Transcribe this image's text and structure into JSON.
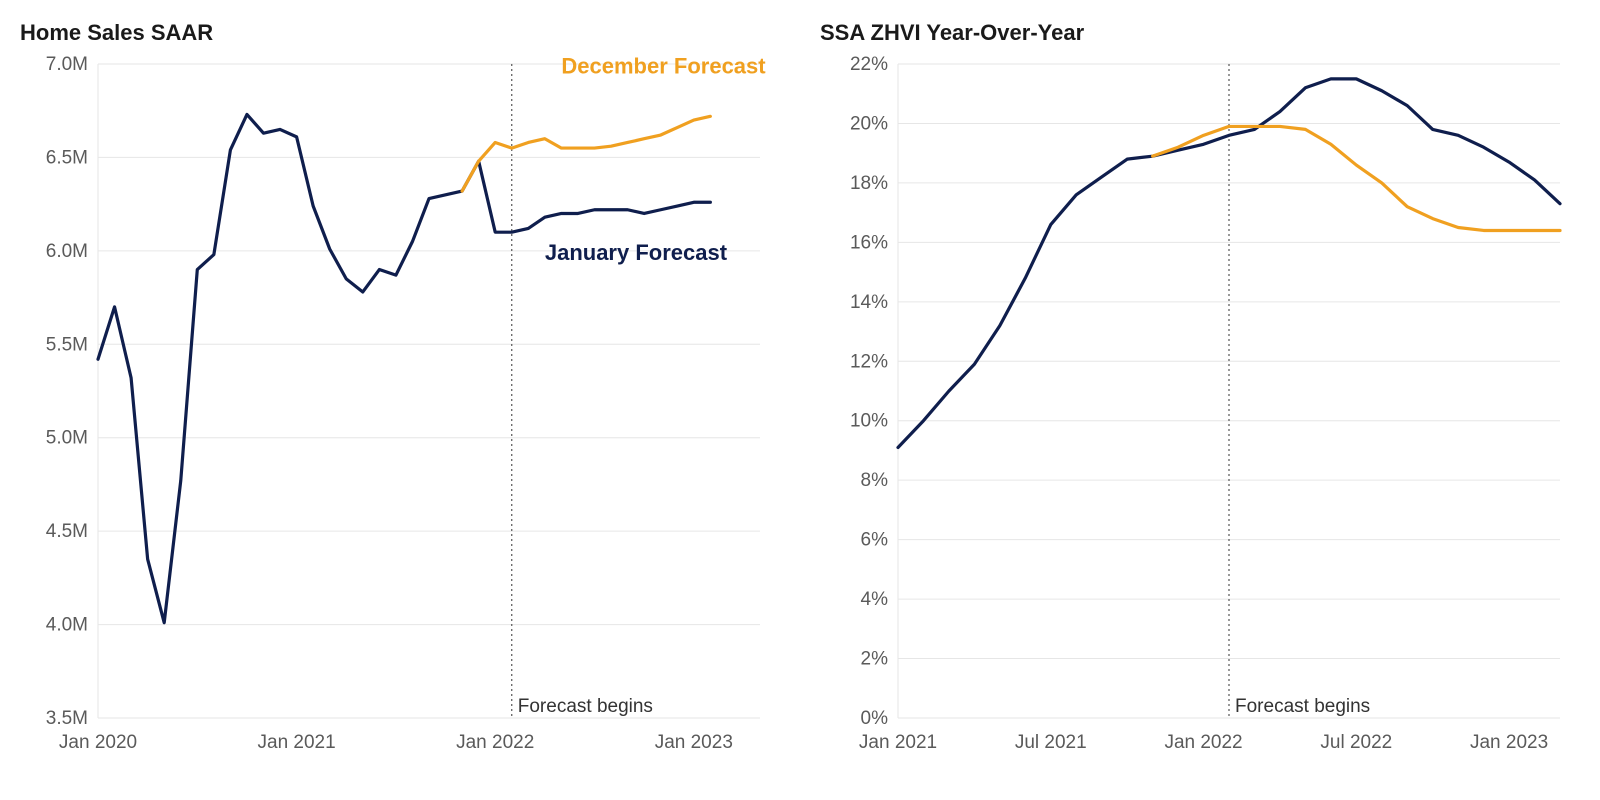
{
  "colors": {
    "january": "#0f1e4d",
    "december": "#f0a020",
    "grid": "#e6e6e6",
    "axis_text": "#5a5a5a",
    "title": "#1a1a1a",
    "forecast_line": "#555555",
    "background": "#ffffff"
  },
  "typography": {
    "title_size": 22,
    "title_weight": 700,
    "axis_size": 19,
    "series_label_size": 22,
    "series_label_weight": 600,
    "forecast_label_size": 19
  },
  "left_chart": {
    "type": "line",
    "title": "Home Sales SAAR",
    "line_width": 3.2,
    "x_domain_months": [
      0,
      40
    ],
    "x_ticks": [
      {
        "m": 0,
        "label": "Jan 2020"
      },
      {
        "m": 12,
        "label": "Jan 2021"
      },
      {
        "m": 24,
        "label": "Jan 2022"
      },
      {
        "m": 36,
        "label": "Jan 2023"
      }
    ],
    "y_domain": [
      3.5,
      7.0
    ],
    "y_ticks": [
      {
        "v": 3.5,
        "label": "3.5M"
      },
      {
        "v": 4.0,
        "label": "4.0M"
      },
      {
        "v": 4.5,
        "label": "4.5M"
      },
      {
        "v": 5.0,
        "label": "5.0M"
      },
      {
        "v": 5.5,
        "label": "5.5M"
      },
      {
        "v": 6.0,
        "label": "6.0M"
      },
      {
        "v": 6.5,
        "label": "6.5M"
      },
      {
        "v": 7.0,
        "label": "7.0M"
      }
    ],
    "forecast_begin_month": 25,
    "forecast_label": "Forecast begins",
    "series": {
      "january": {
        "label": "January Forecast",
        "color_key": "january",
        "label_at": {
          "m": 27,
          "v": 5.95
        },
        "points": [
          [
            0,
            5.42
          ],
          [
            1,
            5.7
          ],
          [
            2,
            5.32
          ],
          [
            3,
            4.35
          ],
          [
            4,
            4.01
          ],
          [
            5,
            4.77
          ],
          [
            6,
            5.9
          ],
          [
            7,
            5.98
          ],
          [
            8,
            6.54
          ],
          [
            9,
            6.73
          ],
          [
            10,
            6.63
          ],
          [
            11,
            6.65
          ],
          [
            12,
            6.61
          ],
          [
            13,
            6.24
          ],
          [
            14,
            6.01
          ],
          [
            15,
            5.85
          ],
          [
            16,
            5.78
          ],
          [
            17,
            5.9
          ],
          [
            18,
            5.87
          ],
          [
            19,
            6.05
          ],
          [
            20,
            6.28
          ],
          [
            21,
            6.3
          ],
          [
            22,
            6.32
          ],
          [
            23,
            6.48
          ],
          [
            24,
            6.1
          ],
          [
            25,
            6.1
          ],
          [
            26,
            6.12
          ],
          [
            27,
            6.18
          ],
          [
            28,
            6.2
          ],
          [
            29,
            6.2
          ],
          [
            30,
            6.22
          ],
          [
            31,
            6.22
          ],
          [
            32,
            6.22
          ],
          [
            33,
            6.2
          ],
          [
            34,
            6.22
          ],
          [
            35,
            6.24
          ],
          [
            36,
            6.26
          ],
          [
            37,
            6.26
          ]
        ]
      },
      "december": {
        "label": "December Forecast",
        "color_key": "december",
        "label_at": {
          "m": 28,
          "v": 6.95
        },
        "points": [
          [
            22,
            6.32
          ],
          [
            23,
            6.48
          ],
          [
            24,
            6.58
          ],
          [
            25,
            6.55
          ],
          [
            26,
            6.58
          ],
          [
            27,
            6.6
          ],
          [
            28,
            6.55
          ],
          [
            29,
            6.55
          ],
          [
            30,
            6.55
          ],
          [
            31,
            6.56
          ],
          [
            32,
            6.58
          ],
          [
            33,
            6.6
          ],
          [
            34,
            6.62
          ],
          [
            35,
            6.66
          ],
          [
            36,
            6.7
          ],
          [
            37,
            6.72
          ]
        ]
      }
    }
  },
  "right_chart": {
    "type": "line",
    "title": "SSA ZHVI Year-Over-Year",
    "line_width": 3.2,
    "x_domain_months": [
      0,
      26
    ],
    "x_ticks": [
      {
        "m": 0,
        "label": "Jan 2021"
      },
      {
        "m": 6,
        "label": "Jul 2021"
      },
      {
        "m": 12,
        "label": "Jan 2022"
      },
      {
        "m": 18,
        "label": "Jul 2022"
      },
      {
        "m": 24,
        "label": "Jan 2023"
      }
    ],
    "y_domain": [
      0,
      22
    ],
    "y_ticks": [
      {
        "v": 0,
        "label": "0%"
      },
      {
        "v": 2,
        "label": "2%"
      },
      {
        "v": 4,
        "label": "4%"
      },
      {
        "v": 6,
        "label": "6%"
      },
      {
        "v": 8,
        "label": "8%"
      },
      {
        "v": 10,
        "label": "10%"
      },
      {
        "v": 12,
        "label": "12%"
      },
      {
        "v": 14,
        "label": "14%"
      },
      {
        "v": 16,
        "label": "16%"
      },
      {
        "v": 18,
        "label": "18%"
      },
      {
        "v": 20,
        "label": "20%"
      },
      {
        "v": 22,
        "label": "22%"
      }
    ],
    "forecast_begin_month": 13,
    "forecast_label": "Forecast begins",
    "series": {
      "january": {
        "color_key": "january",
        "points": [
          [
            0,
            9.1
          ],
          [
            1,
            10.0
          ],
          [
            2,
            11.0
          ],
          [
            3,
            11.9
          ],
          [
            4,
            13.2
          ],
          [
            5,
            14.8
          ],
          [
            6,
            16.6
          ],
          [
            7,
            17.6
          ],
          [
            8,
            18.2
          ],
          [
            9,
            18.8
          ],
          [
            10,
            18.9
          ],
          [
            11,
            19.1
          ],
          [
            12,
            19.3
          ],
          [
            13,
            19.6
          ],
          [
            14,
            19.8
          ],
          [
            15,
            20.4
          ],
          [
            16,
            21.2
          ],
          [
            17,
            21.5
          ],
          [
            18,
            21.5
          ],
          [
            19,
            21.1
          ],
          [
            20,
            20.6
          ],
          [
            21,
            19.8
          ],
          [
            22,
            19.6
          ],
          [
            23,
            19.2
          ],
          [
            24,
            18.7
          ],
          [
            25,
            18.1
          ],
          [
            26,
            17.3
          ]
        ]
      },
      "december": {
        "color_key": "december",
        "points": [
          [
            10,
            18.9
          ],
          [
            11,
            19.2
          ],
          [
            12,
            19.6
          ],
          [
            13,
            19.9
          ],
          [
            14,
            19.9
          ],
          [
            15,
            19.9
          ],
          [
            16,
            19.8
          ],
          [
            17,
            19.3
          ],
          [
            18,
            18.6
          ],
          [
            19,
            18.0
          ],
          [
            20,
            17.2
          ],
          [
            21,
            16.8
          ],
          [
            22,
            16.5
          ],
          [
            23,
            16.4
          ],
          [
            24,
            16.4
          ],
          [
            25,
            16.4
          ],
          [
            26,
            16.4
          ]
        ]
      }
    }
  }
}
